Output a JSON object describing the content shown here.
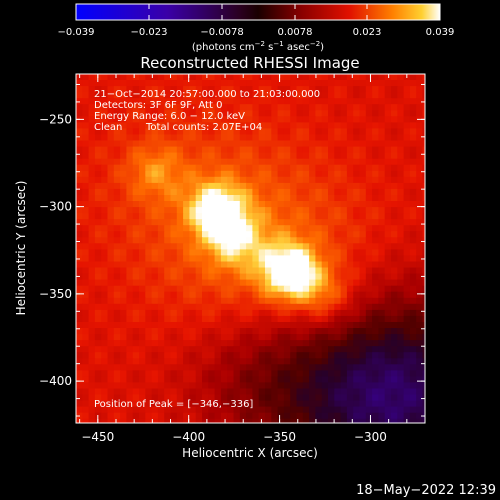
{
  "colorbar": {
    "ticks": [
      "−0.039",
      "−0.023",
      "−0.0078",
      "0.0078",
      "0.023",
      "0.039"
    ],
    "unit_main": "(photons cm",
    "unit_sup1": "−2",
    "unit_mid": " s",
    "unit_sup2": "−1",
    "unit_tail": " asec",
    "unit_sup3": "−2",
    "unit_close": ")"
  },
  "annotations": {
    "time_range": "21−Oct−2014 20:57:00.000 to 21:03:00.000",
    "detectors": "Detectors: 3F 6F 9F, Att 0",
    "energy": "Energy Range: 6.0 − 12.0 keV",
    "clean_label": "Clean",
    "counts": "Total counts: 2.07E+04",
    "peak": "Position of Peak = [−346,−336]"
  },
  "footer_timestamp": "18−May−2022 12:39",
  "chart_data": {
    "type": "heatmap",
    "title": "Reconstructed RHESSI Image",
    "xlabel": "Heliocentric X (arcsec)",
    "ylabel": "Heliocentric Y (arcsec)",
    "xlim": [
      -462,
      -270
    ],
    "ylim": [
      -424,
      -224
    ],
    "x_ticks": [
      -450,
      -400,
      -350,
      -300
    ],
    "y_ticks": [
      -250,
      -300,
      -350,
      -400
    ],
    "x_tick_labels": [
      "−450",
      "−400",
      "−350",
      "−300"
    ],
    "y_tick_labels": [
      "−250",
      "−300",
      "−350",
      "−400"
    ],
    "colorbar_range": [
      -0.039,
      0.039
    ],
    "colormap": "red-temperature",
    "sources": [
      {
        "x": -346,
        "y": -336,
        "amplitude": 1.0
      },
      {
        "x": -386,
        "y": -300,
        "amplitude": 0.78
      },
      {
        "x": -376,
        "y": -318,
        "amplitude": 0.45
      },
      {
        "x": -327,
        "y": -350,
        "amplitude": 0.4
      },
      {
        "x": -420,
        "y": -278,
        "amplitude": 0.35
      }
    ],
    "peak_position": [
      -346,
      -336
    ]
  }
}
